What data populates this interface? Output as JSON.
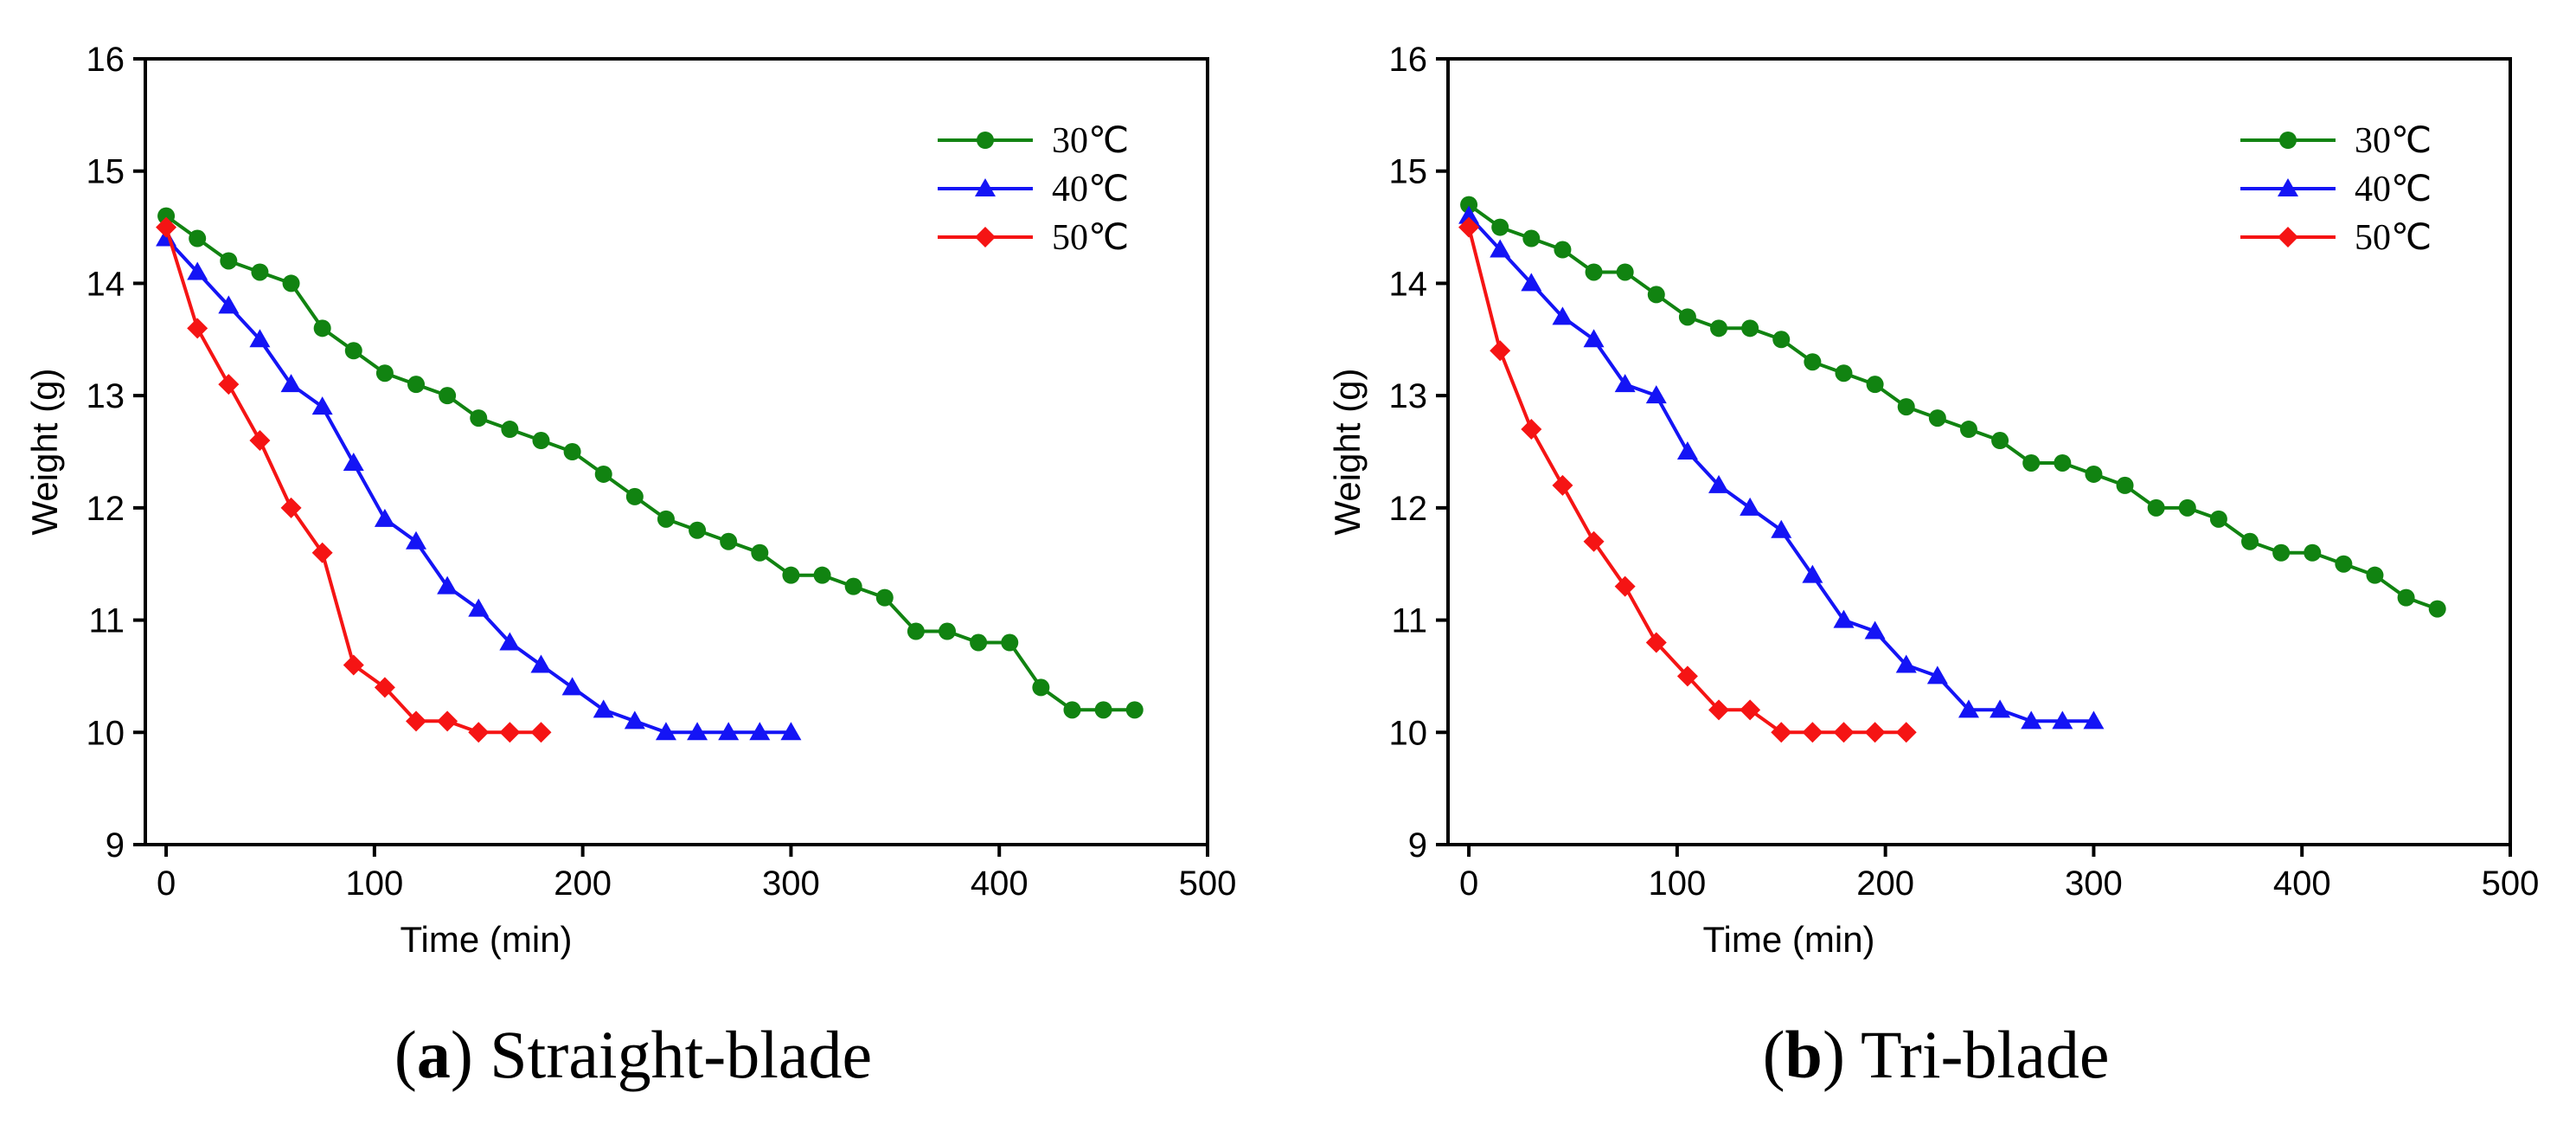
{
  "chart_data": [
    {
      "type": "line",
      "title": "",
      "caption": {
        "letter": "a",
        "text": "Straight-blade"
      },
      "xlabel": "Time (min)",
      "ylabel": "Weight (g)",
      "xlim": [
        -10,
        500
      ],
      "ylim": [
        9,
        16
      ],
      "xticks": [
        0,
        100,
        200,
        300,
        400,
        500
      ],
      "yticks": [
        9,
        10,
        11,
        12,
        13,
        14,
        15,
        16
      ],
      "legend_position": "top-right",
      "series": [
        {
          "name": "30℃",
          "color": "#118311",
          "marker": "circle",
          "x": [
            0,
            15,
            30,
            45,
            60,
            75,
            90,
            105,
            120,
            135,
            150,
            165,
            180,
            195,
            210,
            225,
            240,
            255,
            270,
            285,
            300,
            315,
            330,
            345,
            360,
            375,
            390,
            405,
            420,
            435,
            450,
            465
          ],
          "y": [
            14.6,
            14.4,
            14.2,
            14.1,
            14.0,
            13.6,
            13.4,
            13.2,
            13.1,
            13.0,
            12.8,
            12.7,
            12.6,
            12.5,
            12.3,
            12.1,
            11.9,
            11.8,
            11.7,
            11.6,
            11.4,
            11.4,
            11.3,
            11.2,
            10.9,
            10.9,
            10.8,
            10.8,
            10.4,
            10.2,
            10.2,
            10.2
          ]
        },
        {
          "name": "40℃",
          "color": "#1414f5",
          "marker": "triangle",
          "x": [
            0,
            15,
            30,
            45,
            60,
            75,
            90,
            105,
            120,
            135,
            150,
            165,
            180,
            195,
            210,
            225,
            240,
            255,
            270,
            285,
            300
          ],
          "y": [
            14.4,
            14.1,
            13.8,
            13.5,
            13.1,
            12.9,
            12.4,
            11.9,
            11.7,
            11.3,
            11.1,
            10.8,
            10.6,
            10.4,
            10.2,
            10.1,
            10.0,
            10.0,
            10.0,
            10.0,
            10.0
          ]
        },
        {
          "name": "50℃",
          "color": "#f51414",
          "marker": "diamond",
          "x": [
            0,
            15,
            30,
            45,
            60,
            75,
            90,
            105,
            120,
            135,
            150,
            165,
            180
          ],
          "y": [
            14.5,
            13.6,
            13.1,
            12.6,
            12.0,
            11.6,
            10.6,
            10.4,
            10.1,
            10.1,
            10.0,
            10.0,
            10.0
          ]
        }
      ]
    },
    {
      "type": "line",
      "title": "",
      "caption": {
        "letter": "b",
        "text": "Tri-blade"
      },
      "xlabel": "Time (min)",
      "ylabel": "Weight (g)",
      "xlim": [
        -10,
        500
      ],
      "ylim": [
        9,
        16
      ],
      "xticks": [
        0,
        100,
        200,
        300,
        400,
        500
      ],
      "yticks": [
        9,
        10,
        11,
        12,
        13,
        14,
        15,
        16
      ],
      "legend_position": "top-right",
      "series": [
        {
          "name": "30℃",
          "color": "#118311",
          "marker": "circle",
          "x": [
            0,
            15,
            30,
            45,
            60,
            75,
            90,
            105,
            120,
            135,
            150,
            165,
            180,
            195,
            210,
            225,
            240,
            255,
            270,
            285,
            300,
            315,
            330,
            345,
            360,
            375,
            390,
            405,
            420,
            435,
            450,
            465
          ],
          "y": [
            14.7,
            14.5,
            14.4,
            14.3,
            14.1,
            14.1,
            13.9,
            13.7,
            13.6,
            13.6,
            13.5,
            13.3,
            13.2,
            13.1,
            12.9,
            12.8,
            12.7,
            12.6,
            12.4,
            12.4,
            12.3,
            12.2,
            12.0,
            12.0,
            11.9,
            11.7,
            11.6,
            11.6,
            11.5,
            11.4,
            11.2,
            11.1
          ]
        },
        {
          "name": "40℃",
          "color": "#1414f5",
          "marker": "triangle",
          "x": [
            0,
            15,
            30,
            45,
            60,
            75,
            90,
            105,
            120,
            135,
            150,
            165,
            180,
            195,
            210,
            225,
            240,
            255,
            270,
            285,
            300
          ],
          "y": [
            14.6,
            14.3,
            14.0,
            13.7,
            13.5,
            13.1,
            13.0,
            12.5,
            12.2,
            12.0,
            11.8,
            11.4,
            11.0,
            10.9,
            10.6,
            10.5,
            10.2,
            10.2,
            10.1,
            10.1,
            10.1
          ]
        },
        {
          "name": "50℃",
          "color": "#f51414",
          "marker": "diamond",
          "x": [
            0,
            15,
            30,
            45,
            60,
            75,
            90,
            105,
            120,
            135,
            150,
            165,
            180,
            195,
            210
          ],
          "y": [
            14.5,
            13.4,
            12.7,
            12.2,
            11.7,
            11.3,
            10.8,
            10.5,
            10.2,
            10.2,
            10.0,
            10.0,
            10.0,
            10.0,
            10.0
          ]
        }
      ]
    }
  ]
}
